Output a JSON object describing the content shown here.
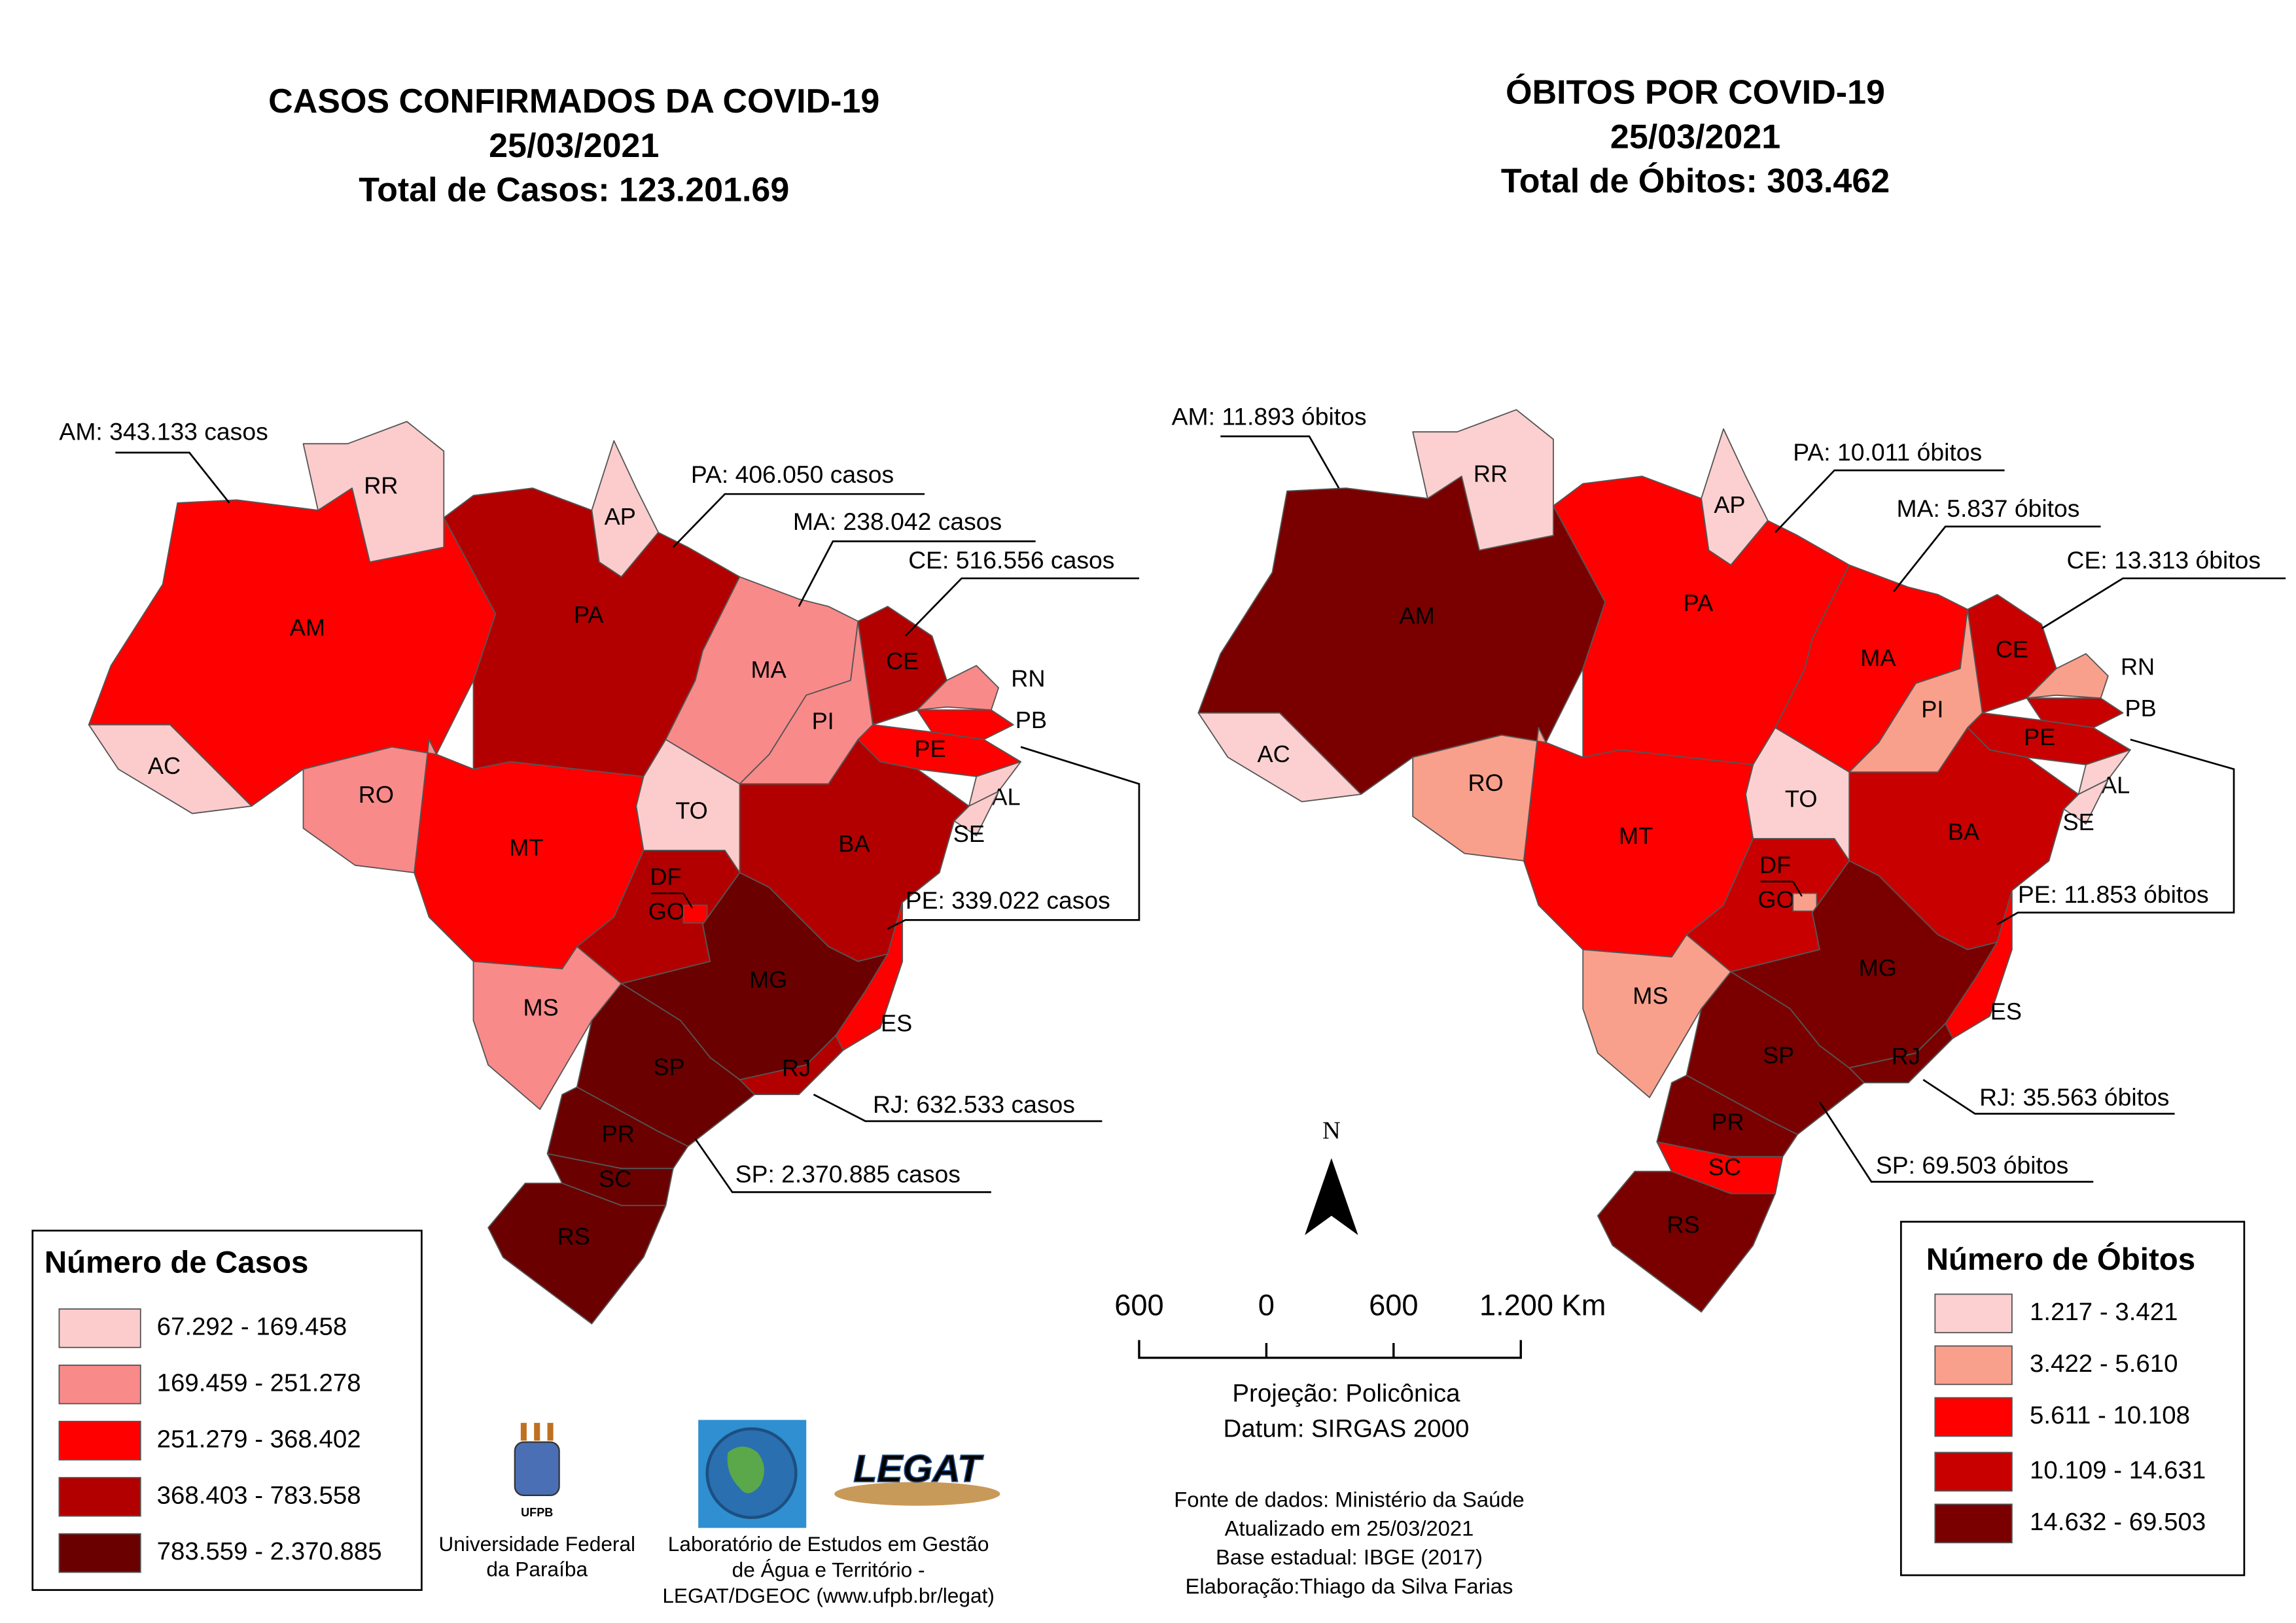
{
  "maps": [
    {
      "title": [
        "CASOS CONFIRMADOS DA COVID-19",
        "25/03/2021",
        "Total de Casos: 123.201.69"
      ],
      "legend": {
        "title": "Número de Casos",
        "classes": [
          {
            "label": "67.292 - 169.458",
            "color": "#fccccc"
          },
          {
            "label": "169.459 - 251.278",
            "color": "#f98a8a"
          },
          {
            "label": "251.279 - 368.402",
            "color": "#ff0000"
          },
          {
            "label": "368.403 - 783.558",
            "color": "#b20000"
          },
          {
            "label": "783.559 - 2.370.885",
            "color": "#6b0000"
          }
        ]
      },
      "states": [
        {
          "label": "AM",
          "class": 2
        },
        {
          "label": "RR",
          "class": 0
        },
        {
          "label": "AP",
          "class": 0
        },
        {
          "label": "PA",
          "class": 3
        },
        {
          "label": "MA",
          "class": 1
        },
        {
          "label": "PI",
          "class": 1
        },
        {
          "label": "CE",
          "class": 3
        },
        {
          "label": "RN",
          "class": 1
        },
        {
          "label": "PB",
          "class": 2
        },
        {
          "label": "PE",
          "class": 2
        },
        {
          "label": "AL",
          "class": 0
        },
        {
          "label": "SE",
          "class": 0
        },
        {
          "label": "BA",
          "class": 3
        },
        {
          "label": "TO",
          "class": 0
        },
        {
          "label": "MT",
          "class": 2
        },
        {
          "label": "RO",
          "class": 1
        },
        {
          "label": "AC",
          "class": 0
        },
        {
          "label": "GO",
          "class": 3
        },
        {
          "label": "DF",
          "class": 2
        },
        {
          "label": "MS",
          "class": 1
        },
        {
          "label": "MG",
          "class": 4
        },
        {
          "label": "ES",
          "class": 2
        },
        {
          "label": "RJ",
          "class": 3
        },
        {
          "label": "SP",
          "class": 4
        },
        {
          "label": "PR",
          "class": 4
        },
        {
          "label": "SC",
          "class": 4
        },
        {
          "label": "RS",
          "class": 4
        }
      ],
      "callouts": [
        "AM: 343.133 casos",
        "PA: 406.050 casos",
        "MA: 238.042 casos",
        "CE: 516.556 casos",
        "PE: 339.022 casos",
        "RJ: 632.533 casos",
        "SP: 2.370.885 casos"
      ]
    },
    {
      "title": [
        "ÓBITOS POR COVID-19",
        "25/03/2021",
        "Total de Óbitos: 303.462"
      ],
      "legend": {
        "title": "Número de Óbitos",
        "classes": [
          {
            "label": "1.217 - 3.421",
            "color": "#fcd0d0"
          },
          {
            "label": "3.422 - 5.610",
            "color": "#f9a08c"
          },
          {
            "label": "5.611 - 10.108",
            "color": "#ff0000"
          },
          {
            "label": "10.109 - 14.631",
            "color": "#c80000"
          },
          {
            "label": "14.632 - 69.503",
            "color": "#7a0000"
          }
        ]
      },
      "states": [
        {
          "label": "AM",
          "class": 4
        },
        {
          "label": "RR",
          "class": 0
        },
        {
          "label": "AP",
          "class": 0
        },
        {
          "label": "PA",
          "class": 2
        },
        {
          "label": "MA",
          "class": 2
        },
        {
          "label": "PI",
          "class": 1
        },
        {
          "label": "CE",
          "class": 3
        },
        {
          "label": "RN",
          "class": 1
        },
        {
          "label": "PB",
          "class": 3
        },
        {
          "label": "PE",
          "class": 3
        },
        {
          "label": "AL",
          "class": 0
        },
        {
          "label": "SE",
          "class": 0
        },
        {
          "label": "BA",
          "class": 3
        },
        {
          "label": "TO",
          "class": 0
        },
        {
          "label": "MT",
          "class": 2
        },
        {
          "label": "RO",
          "class": 1
        },
        {
          "label": "AC",
          "class": 0
        },
        {
          "label": "GO",
          "class": 3
        },
        {
          "label": "DF",
          "class": 1
        },
        {
          "label": "MS",
          "class": 1
        },
        {
          "label": "MG",
          "class": 4
        },
        {
          "label": "ES",
          "class": 2
        },
        {
          "label": "RJ",
          "class": 4
        },
        {
          "label": "SP",
          "class": 4
        },
        {
          "label": "PR",
          "class": 4
        },
        {
          "label": "SC",
          "class": 2
        },
        {
          "label": "RS",
          "class": 4
        }
      ],
      "callouts": [
        "AM: 11.893 óbitos",
        "PA: 10.011 óbitos",
        "MA: 5.837 óbitos",
        "CE: 13.313 óbitos",
        "PE: 11.853 óbitos",
        "RJ: 35.563 óbitos",
        "SP: 69.503 óbitos"
      ]
    }
  ],
  "north": "N",
  "scale_bar": [
    "600",
    "0",
    "600",
    "1.200 Km"
  ],
  "projection": [
    "Projeção: Policônica",
    "Datum: SIRGAS 2000"
  ],
  "credits": [
    "Fonte de dados: Ministério da Saúde",
    "Atualizado em 25/03/2021",
    "Base estadual: IBGE (2017)",
    "Elaboração:Thiago da Silva Farias"
  ],
  "logos": {
    "ufpb": "UFPB",
    "ufpb_caption": [
      "Universidade Federal",
      "da Paraíba"
    ],
    "legat": "LEGAT",
    "legat_caption": [
      "Laboratório de Estudos em Gestão",
      "de Água e Território -",
      "LEGAT/DGEOC (www.ufpb.br/legat)"
    ]
  }
}
